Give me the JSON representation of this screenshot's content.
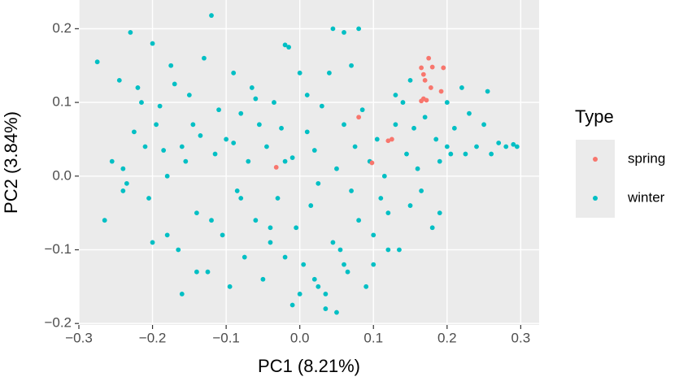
{
  "chart_data": {
    "type": "scatter",
    "x_label": "PC1 (8.21%)",
    "y_label": "PC2 (3.84%)",
    "xlim": [
      -0.3,
      0.325
    ],
    "ylim": [
      -0.202,
      0.239
    ],
    "xticks": [
      {
        "value": -0.3,
        "label": "−0.3"
      },
      {
        "value": -0.2,
        "label": "−0.2"
      },
      {
        "value": -0.1,
        "label": "−0.1"
      },
      {
        "value": 0,
        "label": "0.0"
      },
      0.1,
      0.2,
      0.3
    ],
    "yticks": [
      {
        "value": -0.2,
        "label": "−0.2"
      },
      {
        "value": -0.1,
        "label": "−0.1"
      },
      {
        "value": 0,
        "label": "0.0"
      },
      0.1,
      0.2
    ],
    "grid": true,
    "legend": "right",
    "legend_title": "Type",
    "series": [
      {
        "name": "spring",
        "color": "#F8766D",
        "x": [
          0.175,
          0.165,
          0.195,
          0.18,
          0.168,
          0.17,
          0.178,
          0.192,
          0.168,
          0.172,
          0.165,
          0.08,
          0.125,
          0.12,
          0.098,
          -0.032
        ],
        "values": [
          0.16,
          0.147,
          0.147,
          0.148,
          0.138,
          0.13,
          0.12,
          0.115,
          0.105,
          0.103,
          0.102,
          0.08,
          0.05,
          0.048,
          0.018,
          0.012
        ]
      },
      {
        "name": "winter",
        "color": "#00BFC4",
        "x": [
          -0.275,
          -0.265,
          -0.255,
          -0.245,
          -0.24,
          -0.235,
          -0.23,
          -0.225,
          -0.22,
          -0.215,
          -0.21,
          -0.205,
          -0.2,
          -0.195,
          -0.19,
          -0.185,
          -0.18,
          -0.175,
          -0.17,
          -0.165,
          -0.16,
          -0.155,
          -0.15,
          -0.145,
          -0.14,
          -0.135,
          -0.13,
          -0.125,
          -0.12,
          -0.115,
          -0.11,
          -0.105,
          -0.1,
          -0.095,
          -0.09,
          -0.085,
          -0.08,
          -0.075,
          -0.07,
          -0.065,
          -0.06,
          -0.055,
          -0.05,
          -0.045,
          -0.04,
          -0.035,
          -0.03,
          -0.025,
          -0.02,
          -0.015,
          -0.01,
          -0.005,
          0.0,
          0.005,
          0.01,
          0.015,
          0.02,
          0.025,
          0.03,
          0.035,
          0.04,
          0.045,
          0.05,
          0.055,
          0.06,
          0.065,
          0.07,
          0.075,
          0.08,
          0.085,
          0.09,
          0.095,
          0.1,
          0.105,
          0.11,
          0.115,
          0.12,
          0.13,
          0.135,
          0.14,
          0.145,
          0.15,
          0.155,
          0.16,
          0.165,
          0.17,
          0.18,
          0.185,
          0.19,
          0.2,
          0.205,
          0.21,
          0.22,
          0.225,
          0.23,
          0.24,
          0.25,
          0.255,
          0.26,
          0.27,
          0.28,
          0.29,
          0.295,
          0.08,
          -0.02,
          -0.09,
          0.05,
          0.035,
          -0.01,
          0.0,
          0.02,
          0.06,
          -0.14,
          -0.2,
          -0.24,
          -0.18,
          -0.12,
          0.12,
          0.1,
          0.07,
          0.06,
          0.045,
          -0.06,
          -0.02,
          0.01,
          0.13,
          0.15,
          0.19,
          0.2,
          0.025,
          -0.08,
          -0.04,
          -0.16
        ],
        "values": [
          0.155,
          -0.06,
          0.02,
          0.13,
          0.01,
          -0.01,
          0.195,
          0.06,
          0.12,
          0.1,
          0.04,
          -0.03,
          0.18,
          0.07,
          0.095,
          0.035,
          -0.08,
          0.15,
          0.125,
          -0.1,
          -0.16,
          0.02,
          0.11,
          0.07,
          -0.05,
          0.055,
          0.16,
          -0.13,
          0.218,
          0.03,
          0.09,
          -0.08,
          0.05,
          -0.15,
          0.14,
          -0.02,
          0.085,
          -0.11,
          0.02,
          0.12,
          -0.06,
          0.07,
          -0.14,
          0.04,
          -0.09,
          0.1,
          -0.03,
          0.065,
          -0.11,
          0.175,
          0.025,
          -0.07,
          0.14,
          -0.12,
          0.06,
          -0.04,
          0.035,
          -0.15,
          0.095,
          -0.16,
          0.14,
          -0.09,
          0.01,
          -0.1,
          0.07,
          -0.13,
          -0.02,
          0.04,
          -0.06,
          0.09,
          -0.15,
          0.02,
          -0.08,
          0.05,
          -0.03,
          0.0,
          -0.05,
          0.07,
          -0.1,
          0.1,
          0.03,
          -0.04,
          0.065,
          0.01,
          -0.02,
          0.08,
          -0.07,
          0.05,
          0.02,
          0.1,
          0.03,
          0.065,
          0.12,
          0.03,
          0.085,
          0.04,
          0.07,
          0.115,
          0.03,
          0.045,
          0.04,
          0.043,
          0.04,
          0.2,
          0.178,
          0.045,
          -0.185,
          -0.18,
          -0.175,
          -0.16,
          -0.14,
          -0.12,
          -0.13,
          -0.09,
          -0.02,
          0.0,
          -0.06,
          -0.1,
          -0.12,
          0.15,
          0.195,
          0.2,
          0.105,
          0.02,
          0.11,
          0.11,
          0.13,
          -0.05,
          0.04,
          -0.01,
          -0.03,
          -0.07,
          0.04
        ]
      }
    ]
  }
}
